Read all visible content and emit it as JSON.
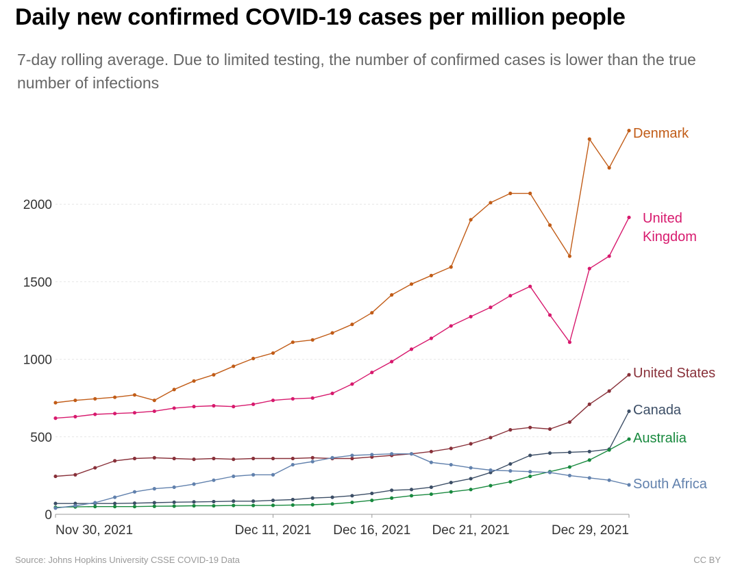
{
  "title": "Daily new confirmed COVID-19 cases per million people",
  "subtitle": "7-day rolling average. Due to limited testing, the number of confirmed cases is lower than the true number of infections",
  "source": "Source: Johns Hopkins University CSSE COVID-19 Data",
  "license": "CC BY",
  "chart_data": {
    "type": "line",
    "title": "Daily new confirmed COVID-19 cases per million people",
    "x_start": "Nov 30, 2021",
    "x_end": "Dec 29, 2021",
    "x_ticks": [
      "Nov 30, 2021",
      "Dec 11, 2021",
      "Dec 16, 2021",
      "Dec 21, 2021",
      "Dec 29, 2021"
    ],
    "y_ticks": [
      0,
      500,
      1000,
      1500,
      2000
    ],
    "ylim": [
      0,
      2500
    ],
    "grid": true,
    "series": [
      {
        "name": "Denmark",
        "color": "#c15c17",
        "values": [
          720,
          735,
          745,
          755,
          770,
          735,
          805,
          860,
          900,
          955,
          1005,
          1040,
          1110,
          1125,
          1170,
          1225,
          1300,
          1415,
          1485,
          1540,
          1595,
          1900,
          2010,
          2070,
          2070,
          1865,
          1665,
          2420,
          2235,
          2475
        ]
      },
      {
        "name": "United Kingdom",
        "color": "#d7196d",
        "values": [
          620,
          630,
          645,
          650,
          655,
          665,
          685,
          695,
          700,
          695,
          710,
          735,
          745,
          750,
          780,
          840,
          915,
          985,
          1065,
          1135,
          1215,
          1275,
          1335,
          1410,
          1470,
          1285,
          1110,
          1585,
          1665,
          1915
        ]
      },
      {
        "name": "United States",
        "color": "#883039",
        "values": [
          245,
          255,
          300,
          345,
          360,
          365,
          360,
          355,
          360,
          355,
          360,
          360,
          360,
          365,
          360,
          360,
          370,
          380,
          390,
          405,
          425,
          455,
          495,
          545,
          560,
          550,
          595,
          710,
          795,
          900
        ]
      },
      {
        "name": "Canada",
        "color": "#3c4e66",
        "values": [
          70,
          70,
          70,
          70,
          72,
          75,
          78,
          80,
          82,
          85,
          85,
          90,
          95,
          105,
          110,
          120,
          135,
          155,
          160,
          175,
          205,
          230,
          270,
          325,
          380,
          395,
          400,
          405,
          420,
          665
        ]
      },
      {
        "name": "Australia",
        "color": "#18893e",
        "values": [
          45,
          48,
          50,
          50,
          50,
          52,
          53,
          55,
          55,
          57,
          57,
          58,
          60,
          62,
          67,
          77,
          90,
          105,
          120,
          130,
          145,
          160,
          185,
          210,
          245,
          275,
          305,
          350,
          415,
          485
        ]
      },
      {
        "name": "South Africa",
        "color": "#6181ad",
        "values": [
          40,
          55,
          75,
          110,
          145,
          165,
          175,
          195,
          220,
          245,
          255,
          255,
          320,
          340,
          365,
          380,
          385,
          390,
          390,
          335,
          320,
          300,
          285,
          280,
          275,
          270,
          250,
          235,
          220,
          190
        ]
      }
    ]
  }
}
